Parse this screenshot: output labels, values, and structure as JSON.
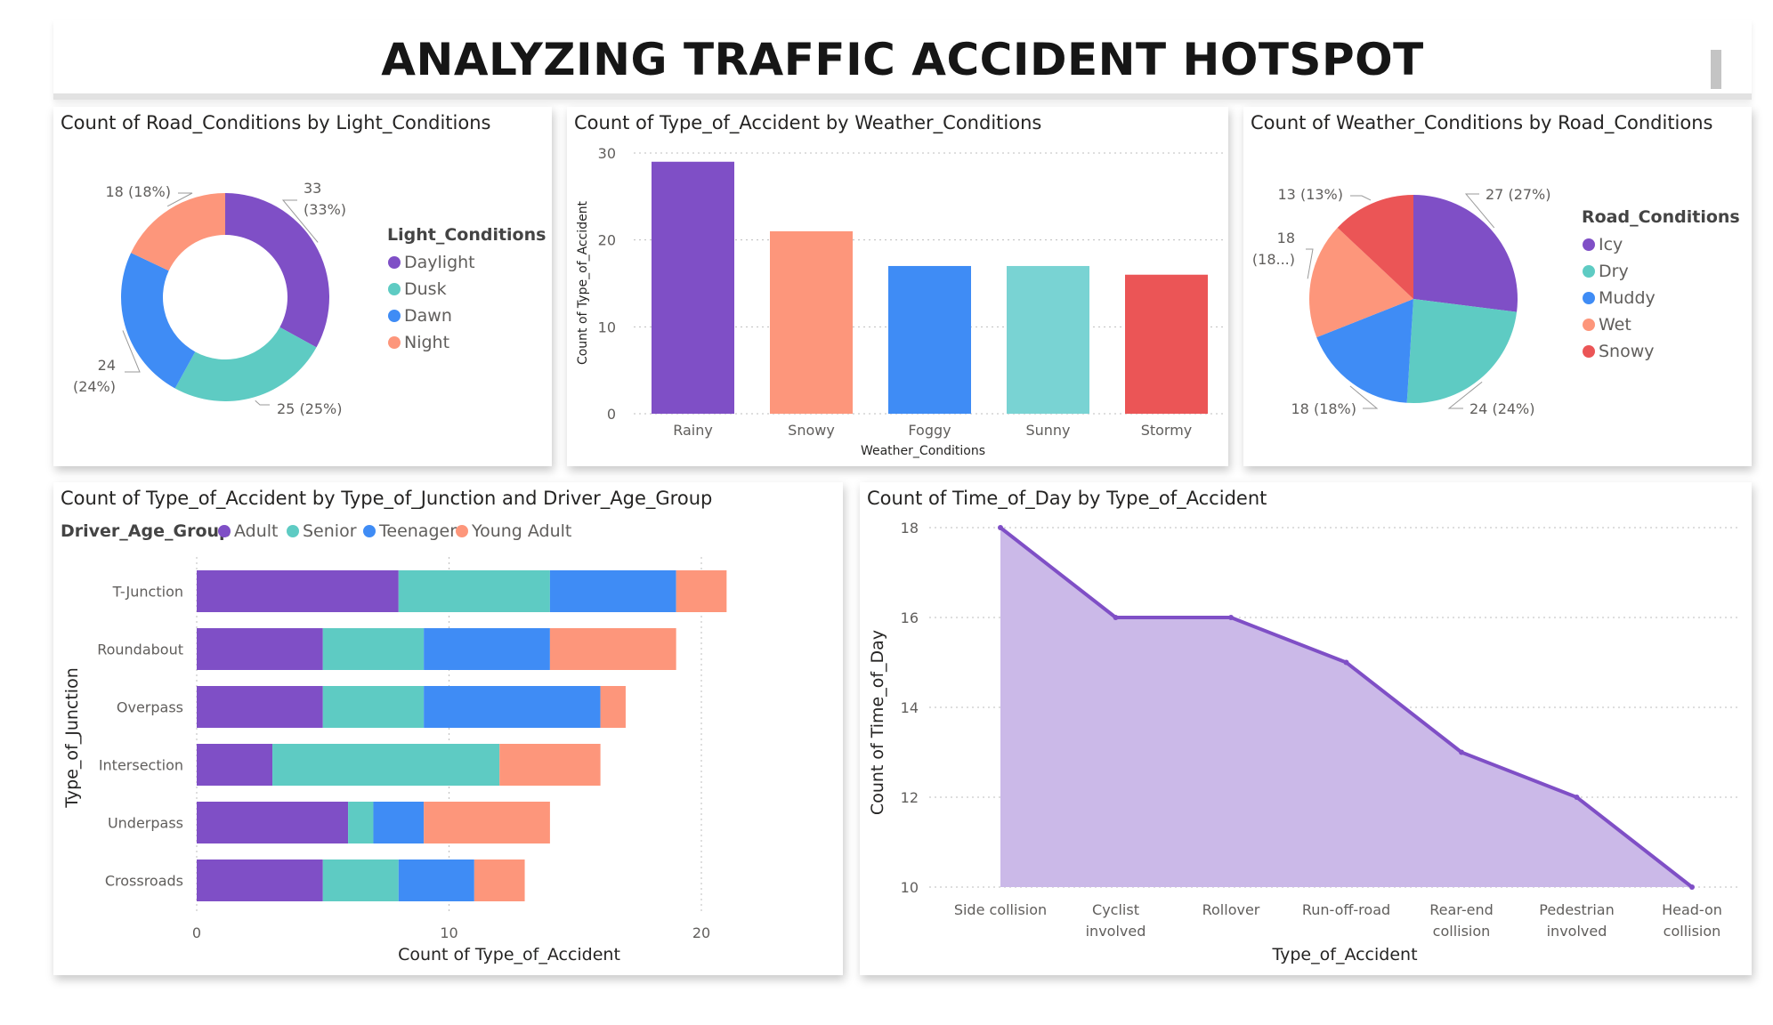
{
  "title": "ANALYZING TRAFFIC ACCIDENT HOTSPOT",
  "colors": {
    "purple": "#7f4fc6",
    "teal": "#5ecbc3",
    "blue": "#3f8cf5",
    "salmon": "#fd967b",
    "red": "#eb5556",
    "areaFill": "#cbb9e8"
  },
  "chart_data": [
    {
      "type": "pie",
      "donut": true,
      "title": "Count of Road_Conditions by Light_Conditions",
      "legend_title": "Light_Conditions",
      "legend_position": "right",
      "slices": [
        {
          "name": "Daylight",
          "value": 33,
          "label": "33 (33%)",
          "color": "#7f4fc6"
        },
        {
          "name": "Dusk",
          "value": 25,
          "label": "25 (25%)",
          "color": "#5ecbc3"
        },
        {
          "name": "Dawn",
          "value": 24,
          "label": "24 (24%)",
          "color": "#3f8cf5"
        },
        {
          "name": "Night",
          "value": 18,
          "label": "18 (18%)",
          "color": "#fd967b"
        }
      ]
    },
    {
      "type": "bar",
      "title": "Count of Type_of_Accident by Weather_Conditions",
      "xlabel": "Weather_Conditions",
      "ylabel": "Count of Type_of_Accident",
      "ylim": [
        0,
        30
      ],
      "yticks": [
        0,
        10,
        20,
        30
      ],
      "categories": [
        "Rainy",
        "Snowy",
        "Foggy",
        "Sunny",
        "Stormy"
      ],
      "values": [
        29,
        21,
        17,
        17,
        16
      ],
      "colors": [
        "#7f4fc6",
        "#fd967b",
        "#3f8cf5",
        "#79d3d3",
        "#eb5556"
      ],
      "grid": true
    },
    {
      "type": "pie",
      "title": "Count of Weather_Conditions by Road_Conditions",
      "legend_title": "Road_Conditions",
      "legend_position": "right",
      "slices": [
        {
          "name": "Icy",
          "value": 27,
          "label": "27 (27%)",
          "color": "#7f4fc6"
        },
        {
          "name": "Dry",
          "value": 24,
          "label": "24 (24%)",
          "color": "#5ecbc3"
        },
        {
          "name": "Muddy",
          "value": 18,
          "label": "18 (18%)",
          "color": "#3f8cf5"
        },
        {
          "name": "Wet",
          "value": 18,
          "label": "18 (18...)",
          "color": "#fd967b"
        },
        {
          "name": "Snowy",
          "value": 13,
          "label": "13 (13%)",
          "color": "#eb5556"
        }
      ]
    },
    {
      "type": "bar",
      "orientation": "horizontal",
      "stacked": true,
      "title": "Count of Type_of_Accident by Type_of_Junction and Driver_Age_Group",
      "legend_title": "Driver_Age_Group",
      "legend_position": "top-left",
      "xlabel": "Count of Type_of_Accident",
      "ylabel": "Type_of_Junction",
      "xlim": [
        0,
        22
      ],
      "xticks": [
        0,
        10,
        20
      ],
      "categories": [
        "T-Junction",
        "Roundabout",
        "Overpass",
        "Intersection",
        "Underpass",
        "Crossroads"
      ],
      "series": [
        {
          "name": "Adult",
          "color": "#7f4fc6",
          "values": [
            8,
            5,
            5,
            3,
            6,
            5
          ]
        },
        {
          "name": "Senior",
          "color": "#5ecbc3",
          "values": [
            6,
            4,
            4,
            9,
            1,
            3
          ]
        },
        {
          "name": "Teenager",
          "color": "#3f8cf5",
          "values": [
            5,
            5,
            7,
            0,
            2,
            3
          ]
        },
        {
          "name": "Young Adult",
          "color": "#fd967b",
          "values": [
            2,
            5,
            1,
            4,
            5,
            2
          ]
        }
      ],
      "grid": true
    },
    {
      "type": "area",
      "title": "Count of Time_of_Day by Type_of_Accident",
      "xlabel": "Type_of_Accident",
      "ylabel": "Count of Time_of_Day",
      "ylim": [
        10,
        18
      ],
      "yticks": [
        10,
        12,
        14,
        16,
        18
      ],
      "categories": [
        "Side collision",
        "Cyclist involved",
        "Rollover",
        "Run-off-road",
        "Rear-end collision",
        "Pedestrian involved",
        "Head-on collision"
      ],
      "category_lines": [
        [
          "Side collision"
        ],
        [
          "Cyclist",
          "involved"
        ],
        [
          "Rollover"
        ],
        [
          "Run-off-road"
        ],
        [
          "Rear-end",
          "collision"
        ],
        [
          "Pedestrian",
          "involved"
        ],
        [
          "Head-on",
          "collision"
        ]
      ],
      "values": [
        18,
        16,
        16,
        15,
        13,
        12,
        10
      ],
      "grid": true
    }
  ]
}
